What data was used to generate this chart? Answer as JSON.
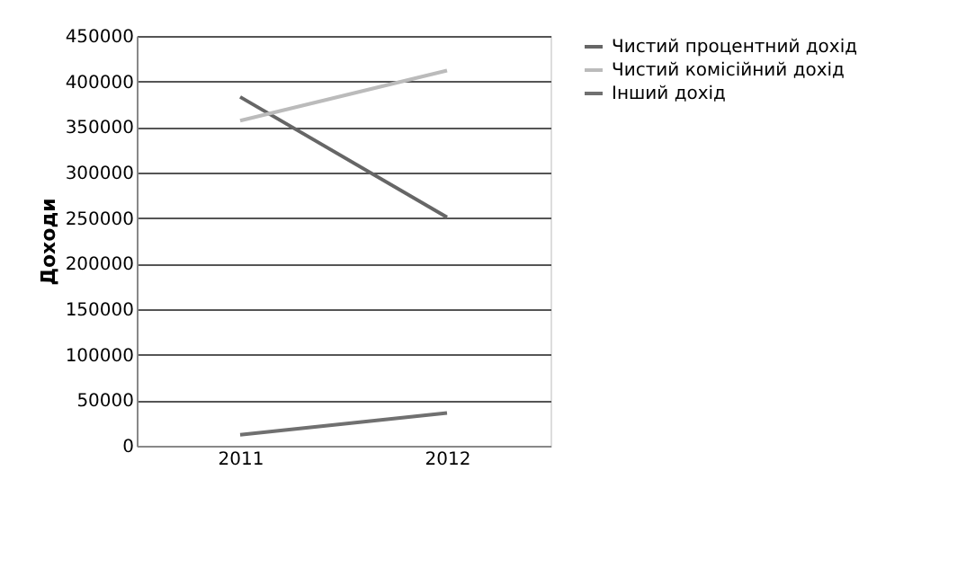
{
  "chart_data": {
    "type": "line",
    "ylabel": "Доходи",
    "categories": [
      "2011",
      "2012"
    ],
    "series": [
      {
        "name": "Чистий процентний дохід",
        "color": "#666666",
        "values": [
          383000,
          251000
        ]
      },
      {
        "name": "Чистий комісійний дохід",
        "color": "#bbbbbb",
        "values": [
          357000,
          412000
        ]
      },
      {
        "name": "Інший дохід",
        "color": "#707070",
        "values": [
          12000,
          36000
        ]
      }
    ],
    "ylim": [
      0,
      450000
    ],
    "yticks": [
      0,
      50000,
      100000,
      150000,
      200000,
      250000,
      300000,
      350000,
      400000,
      450000
    ],
    "grid": "y",
    "legend": "right",
    "marker": "none",
    "line_style": "solid"
  }
}
